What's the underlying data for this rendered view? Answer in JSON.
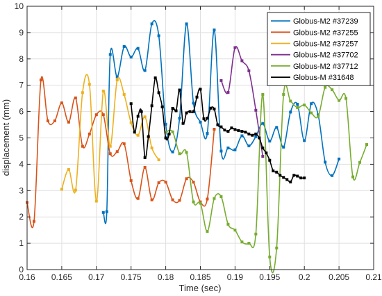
{
  "chart_data": {
    "type": "line",
    "xlabel": "Time (sec)",
    "ylabel": "displacement (mm)",
    "xlim": [
      0.16,
      0.21
    ],
    "ylim": [
      0,
      10
    ],
    "xticks": [
      "0.16",
      "0.165",
      "0.17",
      "0.175",
      "0.18",
      "0.185",
      "0.19",
      "0.195",
      "0.2",
      "0.205",
      "0.21"
    ],
    "yticks": [
      "0",
      "1",
      "2",
      "3",
      "4",
      "5",
      "6",
      "7",
      "8",
      "9",
      "10"
    ],
    "grid": true,
    "legend_position": "top-right",
    "series": [
      {
        "name": "Globus-M2 #37239",
        "color": "#0072BD",
        "points": [
          [
            0.171,
            2.17
          ],
          [
            0.1715,
            2.2
          ],
          [
            0.172,
            8.17
          ],
          [
            0.173,
            7.32
          ],
          [
            0.174,
            8.47
          ],
          [
            0.175,
            8.07
          ],
          [
            0.176,
            8.4
          ],
          [
            0.177,
            7.56
          ],
          [
            0.178,
            9.33
          ],
          [
            0.179,
            8.88
          ],
          [
            0.18,
            5.52
          ],
          [
            0.181,
            4.47
          ],
          [
            0.182,
            5.75
          ],
          [
            0.183,
            9.33
          ],
          [
            0.184,
            6.32
          ],
          [
            0.185,
            5.6
          ],
          [
            0.186,
            5.17
          ],
          [
            0.187,
            9.1
          ],
          [
            0.188,
            4.5
          ],
          [
            0.189,
            4.62
          ],
          [
            0.19,
            4.55
          ],
          [
            0.191,
            5.08
          ],
          [
            0.192,
            4.7
          ],
          [
            0.193,
            5.05
          ],
          [
            0.194,
            5.55
          ],
          [
            0.195,
            4.88
          ],
          [
            0.196,
            5.4
          ],
          [
            0.197,
            4.65
          ],
          [
            0.198,
            5.98
          ],
          [
            0.199,
            6.28
          ],
          [
            0.2,
            4.9
          ],
          [
            0.201,
            6.3
          ],
          [
            0.202,
            5.87
          ],
          [
            0.203,
            4.08
          ],
          [
            0.204,
            3.57
          ],
          [
            0.205,
            4.2
          ]
        ]
      },
      {
        "name": "Globus-M2 #37255",
        "color": "#D95319",
        "points": [
          [
            0.16,
            2.55
          ],
          [
            0.161,
            1.83
          ],
          [
            0.162,
            7.2
          ],
          [
            0.163,
            5.65
          ],
          [
            0.164,
            5.65
          ],
          [
            0.165,
            6.33
          ],
          [
            0.166,
            5.6
          ],
          [
            0.167,
            6.52
          ],
          [
            0.168,
            4.68
          ],
          [
            0.169,
            5.15
          ],
          [
            0.17,
            5.88
          ],
          [
            0.171,
            5.88
          ],
          [
            0.172,
            4.4
          ],
          [
            0.173,
            4.48
          ],
          [
            0.174,
            4.78
          ],
          [
            0.175,
            3.38
          ],
          [
            0.176,
            2.7
          ],
          [
            0.177,
            3.88
          ],
          [
            0.178,
            2.65
          ],
          [
            0.179,
            3.3
          ],
          [
            0.18,
            3.32
          ],
          [
            0.181,
            2.65
          ],
          [
            0.182,
            2.63
          ],
          [
            0.183,
            3.45
          ],
          [
            0.184,
            3.32
          ],
          [
            0.185,
            2.57
          ],
          [
            0.186,
            2.68
          ],
          [
            0.187,
            5.33
          ]
        ]
      },
      {
        "name": "Globus-M2 #37257",
        "color": "#EDB120",
        "points": [
          [
            0.165,
            3.05
          ],
          [
            0.166,
            3.8
          ],
          [
            0.167,
            3.02
          ],
          [
            0.168,
            6.72
          ],
          [
            0.169,
            7.03
          ],
          [
            0.17,
            2.6
          ],
          [
            0.171,
            6.78
          ],
          [
            0.172,
            4.68
          ],
          [
            0.173,
            7.2
          ],
          [
            0.174,
            6.65
          ],
          [
            0.175,
            5.58
          ],
          [
            0.176,
            5.1
          ],
          [
            0.177,
            5.8
          ],
          [
            0.178,
            4.62
          ],
          [
            0.179,
            4.17
          ]
        ]
      },
      {
        "name": "Globus-M2 #37702",
        "color": "#7E2F8E",
        "points": [
          [
            0.188,
            7.18
          ],
          [
            0.189,
            6.73
          ],
          [
            0.19,
            8.43
          ],
          [
            0.191,
            7.93
          ],
          [
            0.192,
            7.55
          ],
          [
            0.193,
            6.05
          ],
          [
            0.194,
            4.3
          ]
        ]
      },
      {
        "name": "Globus-M2 #37712",
        "color": "#77AC30",
        "points": [
          [
            0.18,
            5.22
          ],
          [
            0.181,
            5.23
          ],
          [
            0.182,
            4.4
          ],
          [
            0.183,
            4.45
          ],
          [
            0.184,
            2.57
          ],
          [
            0.185,
            2.52
          ],
          [
            0.186,
            1.45
          ],
          [
            0.187,
            2.7
          ],
          [
            0.188,
            2.77
          ],
          [
            0.189,
            1.72
          ],
          [
            0.19,
            1.5
          ],
          [
            0.191,
            1.05
          ],
          [
            0.192,
            1.0
          ],
          [
            0.193,
            1.35
          ],
          [
            0.194,
            6.65
          ],
          [
            0.195,
            0.48
          ],
          [
            0.196,
            0.82
          ],
          [
            0.197,
            6.65
          ],
          [
            0.198,
            6.4
          ],
          [
            0.199,
            6.15
          ],
          [
            0.2,
            6.25
          ],
          [
            0.201,
            5.95
          ],
          [
            0.202,
            5.82
          ],
          [
            0.203,
            6.92
          ],
          [
            0.204,
            6.83
          ],
          [
            0.205,
            6.42
          ],
          [
            0.206,
            6.5
          ],
          [
            0.207,
            3.52
          ],
          [
            0.208,
            4.07
          ],
          [
            0.209,
            4.75
          ]
        ]
      },
      {
        "name": "Globus-M #31648",
        "color": "#000000",
        "points": [
          [
            0.175,
            6.3
          ],
          [
            0.1755,
            5.22
          ],
          [
            0.176,
            5.82
          ],
          [
            0.1765,
            6.0
          ],
          [
            0.177,
            4.25
          ],
          [
            0.1775,
            5.05
          ],
          [
            0.178,
            6.22
          ],
          [
            0.1785,
            7.28
          ],
          [
            0.179,
            6.72
          ],
          [
            0.1795,
            6.18
          ],
          [
            0.18,
            5.0
          ],
          [
            0.1805,
            5.15
          ],
          [
            0.181,
            6.12
          ],
          [
            0.1815,
            6.03
          ],
          [
            0.182,
            6.82
          ],
          [
            0.1825,
            5.55
          ],
          [
            0.183,
            5.95
          ],
          [
            0.1835,
            6.0
          ],
          [
            0.184,
            6.0
          ],
          [
            0.1845,
            6.55
          ],
          [
            0.185,
            6.85
          ],
          [
            0.1855,
            5.73
          ],
          [
            0.186,
            5.75
          ],
          [
            0.1865,
            6.13
          ],
          [
            0.187,
            6.1
          ],
          [
            0.1875,
            5.5
          ],
          [
            0.188,
            5.42
          ],
          [
            0.1885,
            5.3
          ],
          [
            0.189,
            5.25
          ],
          [
            0.1895,
            5.38
          ],
          [
            0.19,
            5.32
          ],
          [
            0.1905,
            5.28
          ],
          [
            0.191,
            5.25
          ],
          [
            0.1915,
            5.22
          ],
          [
            0.192,
            5.15
          ],
          [
            0.1925,
            5.1
          ],
          [
            0.193,
            5.15
          ],
          [
            0.1935,
            5.0
          ],
          [
            0.194,
            4.62
          ],
          [
            0.1945,
            4.43
          ],
          [
            0.195,
            4.15
          ],
          [
            0.1955,
            3.75
          ],
          [
            0.196,
            3.7
          ],
          [
            0.1965,
            3.58
          ],
          [
            0.197,
            3.5
          ],
          [
            0.1975,
            3.42
          ],
          [
            0.198,
            3.33
          ],
          [
            0.1985,
            3.58
          ],
          [
            0.199,
            3.55
          ],
          [
            0.1995,
            3.48
          ],
          [
            0.2,
            3.48
          ]
        ]
      }
    ]
  }
}
